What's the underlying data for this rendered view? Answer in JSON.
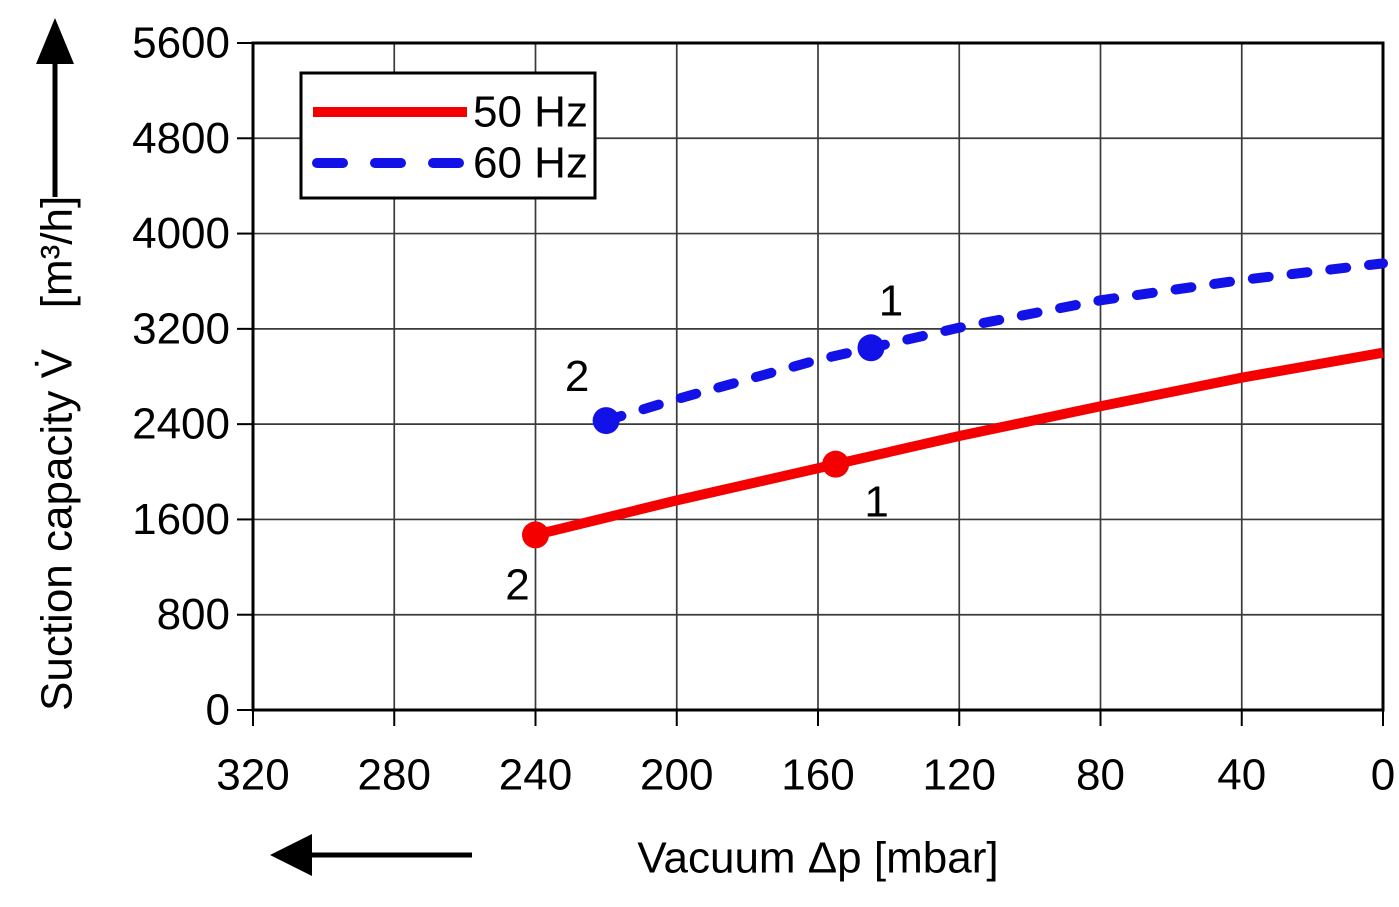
{
  "figure": {
    "background": "#ffffff",
    "y_axis_direction_arrow": "up-arrow",
    "x_axis_direction_arrow": "left-arrow"
  },
  "colors": {
    "series_50hz": "#f50000",
    "series_60hz": "#1212e8",
    "grid": "#3a3a3a",
    "axis": "#000000",
    "text": "#000000",
    "legend_background": "#ffffff"
  },
  "chart_data": {
    "type": "line",
    "title": "",
    "xlabel": "Vacuum Δp [mbar]",
    "ylabel": "Suction capacity V̇",
    "ylabel_units": "[m³/h]",
    "x_reversed": true,
    "xlim": [
      320,
      0
    ],
    "ylim": [
      0,
      5600
    ],
    "x_ticks": [
      320,
      280,
      240,
      200,
      160,
      120,
      80,
      40,
      0
    ],
    "y_ticks": [
      5600,
      4800,
      4000,
      3200,
      2400,
      1600,
      800,
      0
    ],
    "grid": true,
    "legend_position": "top-left-inside",
    "series": [
      {
        "name": "50 Hz",
        "color": "#f50000",
        "style": "solid",
        "points": [
          [
            240,
            1470
          ],
          [
            200,
            1760
          ],
          [
            160,
            2030
          ],
          [
            120,
            2300
          ],
          [
            80,
            2550
          ],
          [
            40,
            2790
          ],
          [
            0,
            3000
          ]
        ],
        "marked_points": [
          {
            "label": "1",
            "x": 155,
            "y": 2064,
            "dx": 41,
            "dy": 38
          },
          {
            "label": "2",
            "x": 240,
            "y": 1470,
            "dx": -18,
            "dy": 50
          }
        ]
      },
      {
        "name": "60 Hz",
        "color": "#1212e8",
        "style": "dashed",
        "points": [
          [
            220,
            2430
          ],
          [
            200,
            2610
          ],
          [
            160,
            2940
          ],
          [
            120,
            3210
          ],
          [
            80,
            3440
          ],
          [
            40,
            3610
          ],
          [
            0,
            3750
          ]
        ],
        "marked_points": [
          {
            "label": "1",
            "x": 145,
            "y": 3041,
            "dx": 20,
            "dy": -47
          },
          {
            "label": "2",
            "x": 220,
            "y": 2430,
            "dx": -29,
            "dy": -44
          }
        ]
      }
    ]
  }
}
